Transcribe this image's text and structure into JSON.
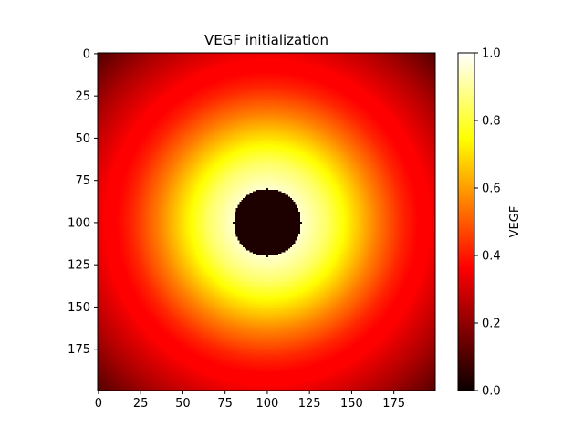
{
  "chart_data": {
    "type": "heatmap",
    "title": "VEGF initialization",
    "xlabel": "",
    "ylabel": "",
    "grid_size": [
      200,
      200
    ],
    "x_ticks": [
      0,
      25,
      50,
      75,
      100,
      125,
      150,
      175
    ],
    "y_ticks": [
      0,
      25,
      50,
      75,
      100,
      125,
      150,
      175
    ],
    "xlim": [
      0,
      199
    ],
    "ylim": [
      199,
      0
    ],
    "y_axis_inverted": true,
    "colormap": "hot",
    "colorbar": {
      "label": "VEGF",
      "range": [
        0.0,
        1.0
      ],
      "ticks": [
        "0.0",
        "0.2",
        "0.4",
        "0.6",
        "0.8",
        "1.0"
      ]
    },
    "field": {
      "description_source": "radial profile read from image",
      "center": [
        100,
        100
      ],
      "core_radius": 20,
      "core_value": 0.0,
      "radial_profile": [
        {
          "r": 20,
          "value": 0.95
        },
        {
          "r": 35,
          "value": 0.85
        },
        {
          "r": 50,
          "value": 0.7
        },
        {
          "r": 65,
          "value": 0.55
        },
        {
          "r": 80,
          "value": 0.42
        },
        {
          "r": 100,
          "value": 0.3
        },
        {
          "r": 120,
          "value": 0.2
        },
        {
          "r": 141,
          "value": 0.08
        }
      ]
    }
  }
}
